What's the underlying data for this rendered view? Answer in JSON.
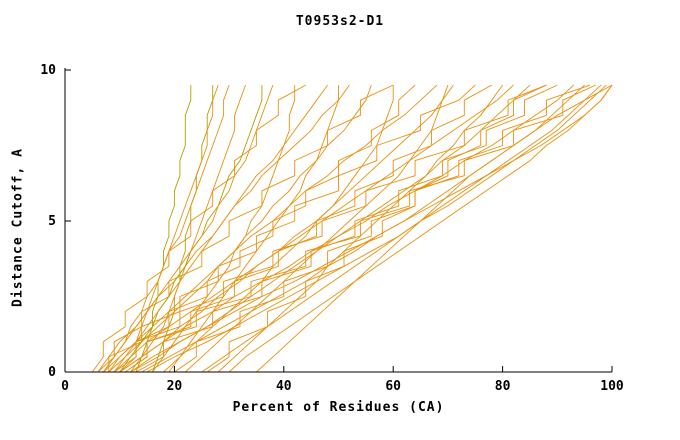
{
  "title": "T0953s2-D1",
  "chart_data": {
    "type": "line",
    "title": "T0953s2-D1",
    "xlabel": "Percent of Residues (CA)",
    "ylabel": "Distance Cutoff, A",
    "xlim": [
      0,
      100
    ],
    "ylim": [
      0,
      10
    ],
    "xticks": [
      0,
      20,
      40,
      60,
      80,
      100
    ],
    "yticks": [
      0,
      5,
      10
    ],
    "grid": false,
    "legend": "none",
    "colors": [
      "#e8910f",
      "#b0a000"
    ],
    "cutoffs": [
      0,
      0.5,
      1,
      1.5,
      2,
      2.5,
      3,
      3.5,
      4,
      4.5,
      5,
      5.5,
      6,
      6.5,
      7,
      7.5,
      8,
      8.5,
      9,
      9.5
    ],
    "series": [
      {
        "color": 0,
        "x": [
          5,
          7,
          7,
          11,
          11,
          15,
          15,
          19,
          19,
          23,
          23,
          27,
          27,
          31,
          31,
          35,
          35,
          39,
          39,
          44
        ]
      },
      {
        "color": 0,
        "x": [
          6,
          8,
          10,
          13,
          15,
          17,
          20,
          22,
          24,
          27,
          29,
          31,
          34,
          36,
          39,
          42,
          45,
          47,
          50,
          52
        ]
      },
      {
        "color": 0,
        "x": [
          7,
          9,
          9,
          14,
          14,
          19,
          19,
          25,
          25,
          30,
          30,
          36,
          36,
          42,
          42,
          48,
          48,
          54,
          54,
          60
        ]
      },
      {
        "color": 0,
        "x": [
          8,
          10,
          13,
          16,
          19,
          22,
          25,
          28,
          31,
          34,
          38,
          41,
          44,
          48,
          51,
          55,
          58,
          62,
          65,
          68
        ]
      },
      {
        "color": 0,
        "x": [
          8,
          8,
          14,
          14,
          21,
          21,
          28,
          28,
          35,
          35,
          42,
          42,
          50,
          50,
          57,
          57,
          65,
          65,
          72,
          75
        ]
      },
      {
        "color": 0,
        "x": [
          9,
          12,
          15,
          19,
          23,
          27,
          31,
          35,
          39,
          43,
          47,
          51,
          55,
          59,
          63,
          67,
          71,
          75,
          79,
          82
        ]
      },
      {
        "color": 0,
        "x": [
          10,
          13,
          13,
          21,
          21,
          29,
          29,
          38,
          38,
          47,
          47,
          55,
          55,
          64,
          64,
          73,
          73,
          81,
          81,
          88
        ]
      },
      {
        "color": 0,
        "x": [
          10,
          14,
          18,
          22,
          27,
          31,
          36,
          41,
          45,
          50,
          55,
          59,
          64,
          69,
          73,
          78,
          82,
          86,
          90,
          93
        ]
      },
      {
        "color": 0,
        "x": [
          11,
          15,
          15,
          24,
          24,
          34,
          34,
          44,
          44,
          54,
          54,
          63,
          63,
          73,
          73,
          82,
          82,
          91,
          91,
          97
        ]
      },
      {
        "color": 0,
        "x": [
          12,
          16,
          21,
          26,
          31,
          36,
          42,
          47,
          52,
          57,
          62,
          67,
          72,
          77,
          82,
          87,
          91,
          95,
          98,
          100
        ]
      },
      {
        "color": 1,
        "x": [
          13,
          14,
          15,
          16,
          16,
          17,
          17,
          18,
          18,
          19,
          19,
          20,
          20,
          21,
          21,
          22,
          22,
          22,
          23,
          23
        ]
      },
      {
        "color": 1,
        "x": [
          16,
          17,
          18,
          19,
          20,
          20,
          21,
          21,
          22,
          22,
          23,
          23,
          24,
          24,
          25,
          25,
          26,
          26,
          27,
          27
        ]
      },
      {
        "color": 0,
        "x": [
          12,
          14,
          16,
          18,
          19,
          20,
          21,
          22,
          23,
          24,
          25,
          26,
          27,
          28,
          29,
          30,
          31,
          31,
          32,
          33
        ]
      },
      {
        "color": 0,
        "x": [
          9,
          11,
          13,
          14,
          15,
          16,
          17,
          18,
          19,
          20,
          21,
          22,
          23,
          24,
          25,
          26,
          26,
          27,
          27,
          28
        ]
      },
      {
        "color": 0,
        "x": [
          7,
          10,
          13,
          15,
          17,
          19,
          21,
          23,
          25,
          27,
          29,
          31,
          33,
          35,
          38,
          40,
          42,
          44,
          46,
          48
        ]
      },
      {
        "color": 0,
        "x": [
          8,
          11,
          14,
          17,
          20,
          23,
          26,
          28,
          31,
          33,
          36,
          38,
          41,
          43,
          46,
          48,
          51,
          53,
          55,
          56
        ]
      },
      {
        "color": 0,
        "x": [
          9,
          13,
          13,
          19,
          19,
          26,
          26,
          32,
          32,
          38,
          38,
          44,
          44,
          50,
          50,
          56,
          56,
          61,
          61,
          64
        ]
      },
      {
        "color": 0,
        "x": [
          10,
          14,
          18,
          21,
          25,
          28,
          32,
          35,
          39,
          42,
          46,
          49,
          52,
          55,
          58,
          61,
          64,
          67,
          69,
          71
        ]
      },
      {
        "color": 0,
        "x": [
          11,
          15,
          15,
          23,
          23,
          31,
          31,
          39,
          39,
          46,
          46,
          53,
          53,
          60,
          60,
          67,
          67,
          73,
          73,
          78
        ]
      },
      {
        "color": 0,
        "x": [
          12,
          17,
          21,
          26,
          30,
          34,
          38,
          42,
          46,
          50,
          54,
          58,
          62,
          66,
          69,
          73,
          76,
          79,
          82,
          85
        ]
      },
      {
        "color": 0,
        "x": [
          13,
          18,
          18,
          27,
          27,
          36,
          36,
          45,
          45,
          53,
          53,
          61,
          61,
          69,
          69,
          77,
          77,
          84,
          84,
          90
        ]
      },
      {
        "color": 0,
        "x": [
          14,
          19,
          24,
          29,
          34,
          39,
          44,
          48,
          53,
          57,
          62,
          66,
          70,
          74,
          78,
          82,
          86,
          89,
          92,
          95
        ]
      },
      {
        "color": 0,
        "x": [
          15,
          20,
          26,
          31,
          36,
          41,
          46,
          51,
          56,
          61,
          65,
          70,
          74,
          78,
          82,
          86,
          90,
          93,
          96,
          99
        ]
      },
      {
        "color": 0,
        "x": [
          20,
          24,
          24,
          32,
          32,
          40,
          40,
          48,
          48,
          56,
          56,
          64,
          64,
          72,
          72,
          80,
          80,
          88,
          88,
          96
        ]
      },
      {
        "color": 0,
        "x": [
          25,
          29,
          33,
          37,
          41,
          45,
          49,
          53,
          57,
          61,
          65,
          69,
          73,
          77,
          81,
          85,
          89,
          92,
          95,
          98
        ]
      },
      {
        "color": 0,
        "x": [
          30,
          33,
          37,
          41,
          45,
          49,
          53,
          57,
          61,
          65,
          69,
          73,
          77,
          81,
          85,
          88,
          92,
          95,
          98,
          100
        ]
      },
      {
        "color": 0,
        "x": [
          18,
          21,
          24,
          27,
          30,
          33,
          36,
          38,
          41,
          44,
          46,
          49,
          51,
          53,
          55,
          57,
          58,
          59,
          60,
          60
        ]
      },
      {
        "color": 0,
        "x": [
          22,
          25,
          28,
          31,
          34,
          37,
          40,
          43,
          46,
          49,
          52,
          55,
          58,
          61,
          63,
          65,
          67,
          68,
          69,
          70
        ]
      },
      {
        "color": 0,
        "x": [
          16,
          18,
          20,
          22,
          24,
          26,
          28,
          30,
          31,
          33,
          34,
          36,
          37,
          38,
          39,
          40,
          41,
          41,
          42,
          42
        ]
      },
      {
        "color": 0,
        "x": [
          19,
          21,
          23,
          25,
          27,
          29,
          31,
          33,
          35,
          37,
          39,
          41,
          43,
          44,
          46,
          47,
          48,
          49,
          50,
          50
        ]
      },
      {
        "color": 1,
        "x": [
          10,
          12,
          14,
          16,
          17,
          19,
          20,
          22,
          23,
          25,
          26,
          28,
          29,
          30,
          32,
          33,
          34,
          35,
          36,
          36
        ]
      },
      {
        "color": 0,
        "x": [
          6,
          9,
          11,
          13,
          15,
          17,
          19,
          21,
          23,
          25,
          27,
          28,
          30,
          31,
          33,
          34,
          35,
          36,
          37,
          38
        ]
      },
      {
        "color": 0,
        "x": [
          7,
          9,
          11,
          12,
          14,
          15,
          17,
          18,
          19,
          21,
          22,
          23,
          24,
          25,
          26,
          27,
          28,
          29,
          29,
          30
        ]
      },
      {
        "color": 0,
        "x": [
          26,
          30,
          30,
          37,
          37,
          44,
          44,
          51,
          51,
          58,
          58,
          64,
          64,
          70,
          70,
          76,
          76,
          82,
          82,
          88
        ]
      },
      {
        "color": 0,
        "x": [
          35,
          38,
          41,
          44,
          47,
          50,
          53,
          56,
          59,
          62,
          65,
          68,
          71,
          74,
          78,
          82,
          86,
          90,
          95,
          100
        ]
      },
      {
        "color": 0,
        "x": [
          28,
          31,
          34,
          37,
          40,
          43,
          46,
          48,
          51,
          54,
          57,
          60,
          63,
          66,
          68,
          71,
          73,
          76,
          78,
          80
        ]
      }
    ]
  }
}
